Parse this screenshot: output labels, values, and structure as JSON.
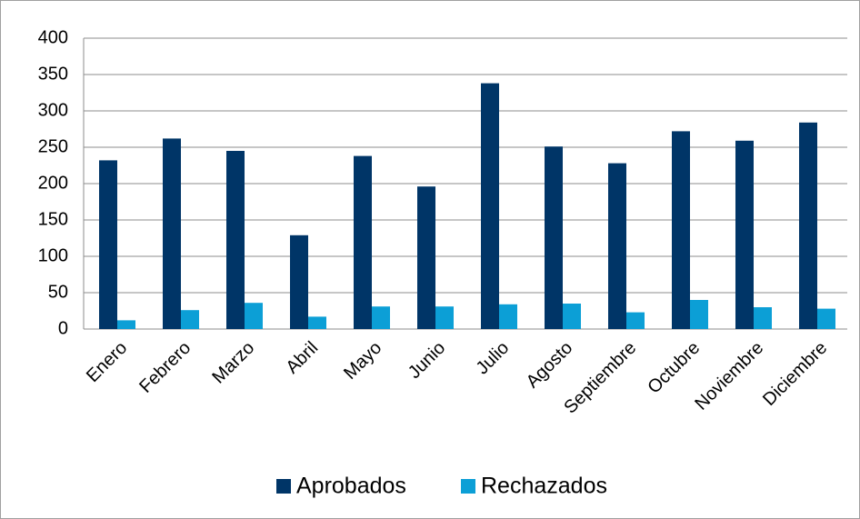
{
  "chart_data": {
    "type": "bar",
    "categories": [
      "Enero",
      "Febrero",
      "Marzo",
      "Abril",
      "Mayo",
      "Junio",
      "Julio",
      "Agosto",
      "Septiembre",
      "Octubre",
      "Noviembre",
      "Diciembre"
    ],
    "series": [
      {
        "name": "Aprobados",
        "color": "#003567",
        "values": [
          232,
          262,
          245,
          129,
          238,
          196,
          338,
          251,
          228,
          272,
          259,
          284
        ]
      },
      {
        "name": "Rechazados",
        "color": "#0c9fd6",
        "values": [
          12,
          26,
          36,
          17,
          31,
          31,
          34,
          35,
          23,
          40,
          30,
          28
        ]
      }
    ],
    "ylim": [
      0,
      400
    ],
    "yticks": [
      0,
      50,
      100,
      150,
      200,
      250,
      300,
      350,
      400
    ],
    "grid": true,
    "legend": "bottom"
  }
}
